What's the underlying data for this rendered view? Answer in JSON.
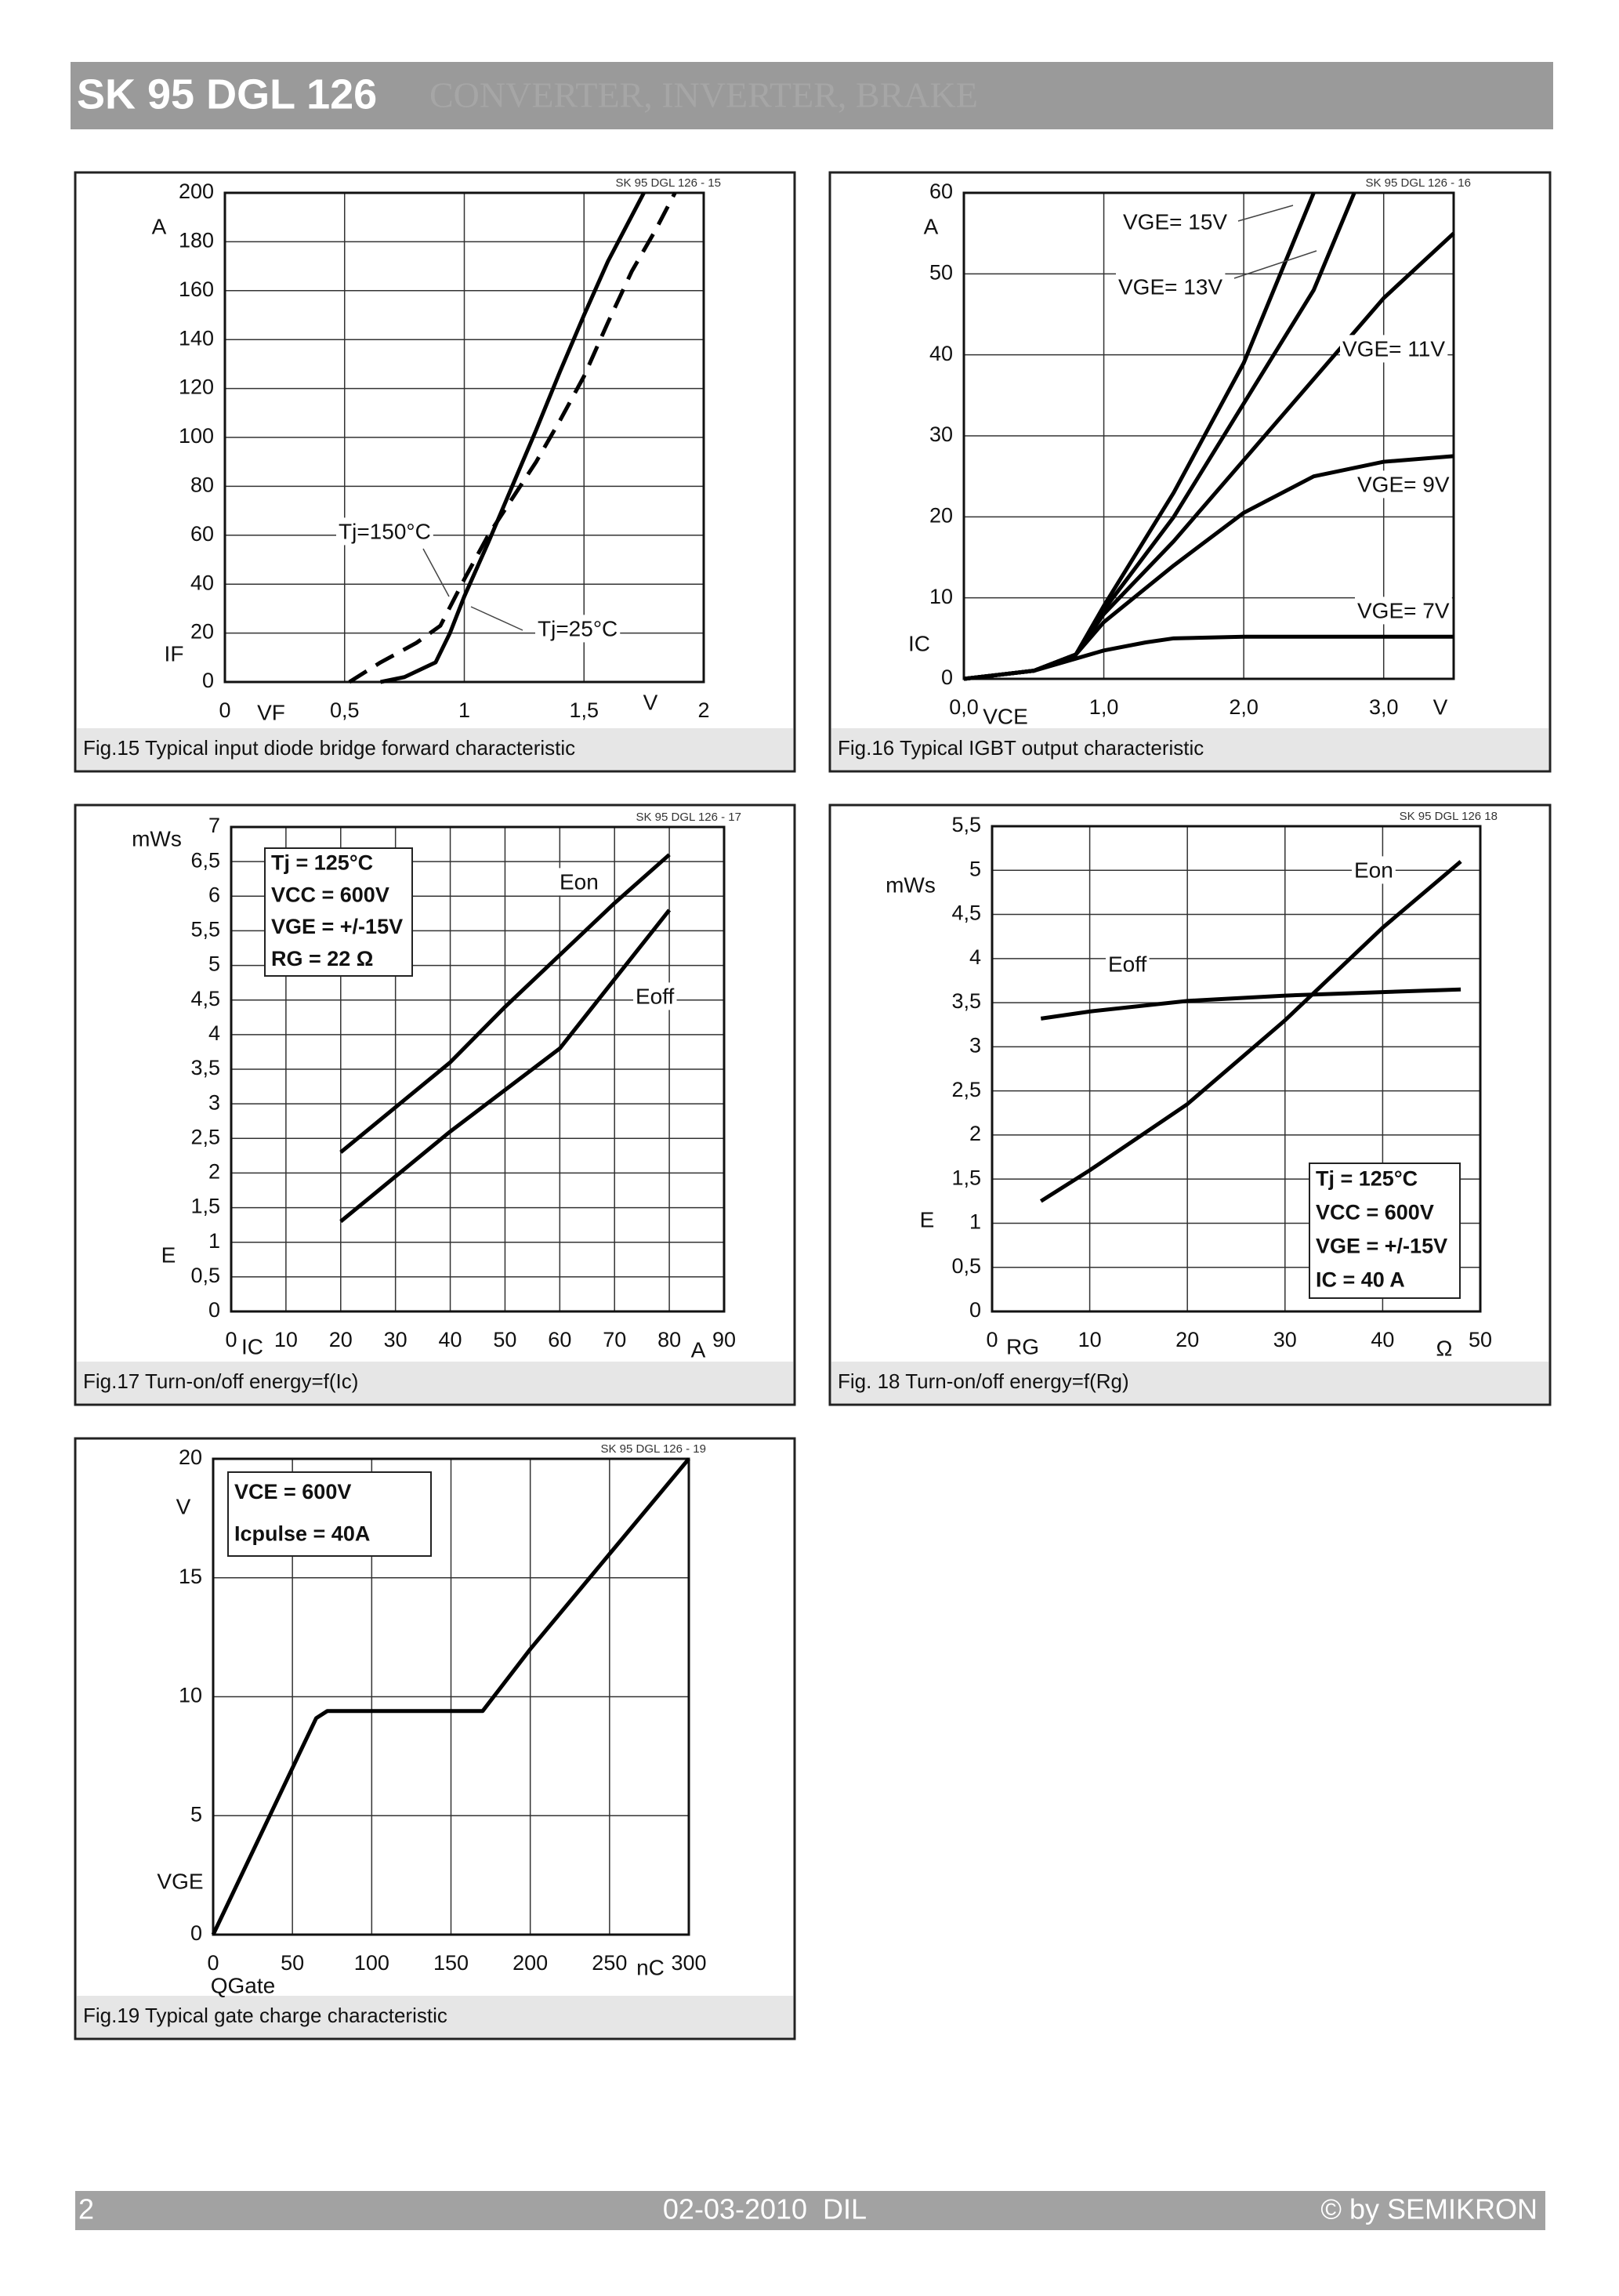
{
  "header": {
    "title": "SK 95 DGL 126",
    "subtitle": "CONVERTER, INVERTER, BRAKE"
  },
  "chart_data": [
    {
      "type": "line",
      "code": "SK 95 DGL 126 - 15",
      "caption": "Fig.15 Typical input diode bridge forward characteristic",
      "xlabel": "VF",
      "xunit": "V",
      "ylabel": "IF",
      "yunit": "A",
      "xlim": [
        0,
        2
      ],
      "ylim": [
        0,
        200
      ],
      "xticks": [
        0,
        {
          "value": 0.5,
          "label": "0,5"
        },
        1,
        {
          "value": 1.5,
          "label": "1,5"
        },
        2
      ],
      "yticks": [
        0,
        20,
        40,
        60,
        80,
        100,
        120,
        140,
        160,
        180,
        200
      ],
      "grid": true,
      "series": [
        {
          "name": "Tj=150°C",
          "color": "#000000",
          "style": "dashed",
          "x": [
            0.52,
            0.65,
            0.8,
            0.9,
            1.0,
            1.1,
            1.2,
            1.3,
            1.4,
            1.5,
            1.6,
            1.7,
            1.8,
            1.88
          ],
          "values": [
            0,
            8,
            16,
            23,
            42,
            60,
            75,
            90,
            107,
            125,
            147,
            168,
            185,
            200
          ]
        },
        {
          "name": "Tj=25°C",
          "color": "#000000",
          "style": "solid",
          "x": [
            0.65,
            0.75,
            0.88,
            0.94,
            1.0,
            1.1,
            1.2,
            1.3,
            1.4,
            1.5,
            1.6,
            1.75
          ],
          "values": [
            0,
            2,
            8,
            20,
            35,
            57,
            80,
            103,
            127,
            150,
            172,
            200
          ]
        }
      ]
    },
    {
      "type": "line",
      "code": "SK 95 DGL 126 - 16",
      "caption": "Fig.16 Typical IGBT output characteristic",
      "xlabel": "VCE",
      "xunit": "V",
      "ylabel": "IC",
      "yunit": "A",
      "xlim": [
        0,
        3.5
      ],
      "ylim": [
        0,
        60
      ],
      "xticks": [
        {
          "value": 0,
          "label": "0,0"
        },
        {
          "value": 1,
          "label": "1,0"
        },
        {
          "value": 2,
          "label": "2,0"
        },
        {
          "value": 3,
          "label": "3,0"
        }
      ],
      "yticks": [
        0,
        10,
        20,
        30,
        40,
        50,
        60
      ],
      "grid": true,
      "series": [
        {
          "name": "VGE= 15V",
          "color": "#000000",
          "style": "solid",
          "x": [
            0,
            0.5,
            0.8,
            1.0,
            1.5,
            2.0,
            2.5
          ],
          "values": [
            0,
            1,
            3,
            9,
            23,
            39,
            60
          ]
        },
        {
          "name": "VGE= 13V",
          "color": "#000000",
          "style": "solid",
          "x": [
            0,
            0.5,
            0.8,
            1.0,
            1.5,
            2.0,
            2.5,
            2.79
          ],
          "values": [
            0,
            1,
            3,
            8.5,
            20,
            34,
            48,
            60
          ]
        },
        {
          "name": "VGE= 11V",
          "color": "#000000",
          "style": "solid",
          "x": [
            0,
            0.5,
            0.8,
            1.0,
            1.5,
            2.0,
            2.5,
            3.0,
            3.5
          ],
          "values": [
            0,
            1,
            3,
            8,
            17,
            27,
            37,
            47,
            55
          ]
        },
        {
          "name": "VGE= 9V",
          "color": "#000000",
          "style": "solid",
          "x": [
            0,
            0.5,
            0.8,
            1.0,
            1.5,
            2.0,
            2.5,
            3.0,
            3.5
          ],
          "values": [
            0,
            1,
            3,
            7,
            14,
            20.5,
            25,
            26.8,
            27.5
          ]
        },
        {
          "name": "VGE= 7V",
          "color": "#000000",
          "style": "solid",
          "x": [
            0,
            0.5,
            0.8,
            1.0,
            1.3,
            1.5,
            2.0,
            3.5
          ],
          "values": [
            0,
            1,
            2.5,
            3.5,
            4.5,
            5,
            5.2,
            5.2
          ]
        }
      ]
    },
    {
      "type": "line",
      "code": "SK 95 DGL 126 - 17",
      "caption": "Fig.17 Turn-on/off energy=f(Ic)",
      "xlabel": "IC",
      "xunit": "A",
      "ylabel": "E",
      "yunit": "mWs",
      "xlim": [
        0,
        90
      ],
      "ylim": [
        0,
        7
      ],
      "xticks": [
        0,
        10,
        20,
        30,
        40,
        50,
        60,
        70,
        80,
        90
      ],
      "yticks": [
        0,
        {
          "value": 0.5,
          "label": "0,5"
        },
        1,
        {
          "value": 1.5,
          "label": "1,5"
        },
        2,
        {
          "value": 2.5,
          "label": "2,5"
        },
        3,
        {
          "value": 3.5,
          "label": "3,5"
        },
        4,
        {
          "value": 4.5,
          "label": "4,5"
        },
        5,
        {
          "value": 5.5,
          "label": "5,5"
        },
        6,
        {
          "value": 6.5,
          "label": "6,5"
        },
        7
      ],
      "grid": true,
      "info": [
        "Tj = 125°C",
        "VCC = 600V",
        "VGE = +/-15V",
        "RG = 22 Ω"
      ],
      "series": [
        {
          "name": "Eon",
          "color": "#000000",
          "style": "solid",
          "x": [
            20,
            30,
            40,
            50,
            60,
            70,
            80
          ],
          "values": [
            2.3,
            2.95,
            3.6,
            4.4,
            5.15,
            5.9,
            6.6
          ]
        },
        {
          "name": "Eoff",
          "color": "#000000",
          "style": "solid",
          "x": [
            20,
            30,
            40,
            50,
            60,
            70,
            80
          ],
          "values": [
            1.3,
            1.95,
            2.6,
            3.2,
            3.8,
            4.8,
            5.8
          ]
        }
      ]
    },
    {
      "type": "line",
      "code": "SK 95 DGL 126 18",
      "caption": "Fig. 18 Turn-on/off energy=f(Rg)",
      "xlabel": "RG",
      "xunit": "Ω",
      "ylabel": "E",
      "yunit": "mWs",
      "xlim": [
        0,
        50
      ],
      "ylim": [
        0,
        5.5
      ],
      "xticks": [
        0,
        10,
        20,
        30,
        40,
        50
      ],
      "yticks": [
        0,
        {
          "value": 0.5,
          "label": "0,5"
        },
        1,
        {
          "value": 1.5,
          "label": "1,5"
        },
        2,
        {
          "value": 2.5,
          "label": "2,5"
        },
        3,
        {
          "value": 3.5,
          "label": "3,5"
        },
        4,
        {
          "value": 4.5,
          "label": "4,5"
        },
        5,
        {
          "value": 5.5,
          "label": "5,5"
        }
      ],
      "grid": true,
      "info": [
        "Tj = 125°C",
        "VCC = 600V",
        "VGE = +/-15V",
        "IC = 40 A"
      ],
      "series": [
        {
          "name": "Eon",
          "color": "#000000",
          "style": "solid",
          "x": [
            5,
            10,
            20,
            30,
            40,
            48
          ],
          "values": [
            1.25,
            1.6,
            2.35,
            3.3,
            4.35,
            5.1
          ]
        },
        {
          "name": "Eoff",
          "color": "#000000",
          "style": "solid",
          "x": [
            5,
            10,
            20,
            30,
            40,
            48
          ],
          "values": [
            3.32,
            3.4,
            3.52,
            3.58,
            3.62,
            3.65
          ]
        }
      ]
    },
    {
      "type": "line",
      "code": "SK 95 DGL 126 - 19",
      "caption": "Fig.19 Typical gate charge characteristic",
      "xlabel": "QGate",
      "xunit": "nC",
      "ylabel": "VGE",
      "yunit": "V",
      "xlim": [
        0,
        300
      ],
      "ylim": [
        0,
        20
      ],
      "xticks": [
        0,
        50,
        100,
        150,
        200,
        250,
        300
      ],
      "yticks": [
        0,
        5,
        10,
        15,
        20
      ],
      "grid": true,
      "info": [
        "VCE = 600V",
        "Icpulse = 40A"
      ],
      "series": [
        {
          "color": "#000000",
          "style": "solid",
          "x": [
            0,
            65,
            72,
            170,
            200,
            250,
            300
          ],
          "values": [
            0,
            9.1,
            9.4,
            9.4,
            12,
            16,
            20
          ]
        }
      ]
    }
  ],
  "footer": {
    "page": "2",
    "date": "02-03-2010  DIL",
    "copyright": "© by SEMIKRON"
  }
}
